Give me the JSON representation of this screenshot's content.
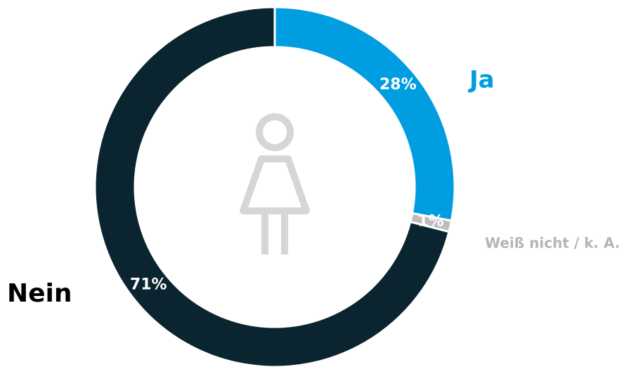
{
  "chart_data": {
    "type": "donut",
    "categories": [
      "Ja",
      "Weiß nicht / k. A.",
      "Nein"
    ],
    "values": [
      28,
      1,
      71
    ],
    "value_labels": [
      "28%",
      "1%",
      "71%"
    ],
    "colors": [
      "#009de0",
      "#bdbdbd",
      "#0b2530"
    ]
  }
}
